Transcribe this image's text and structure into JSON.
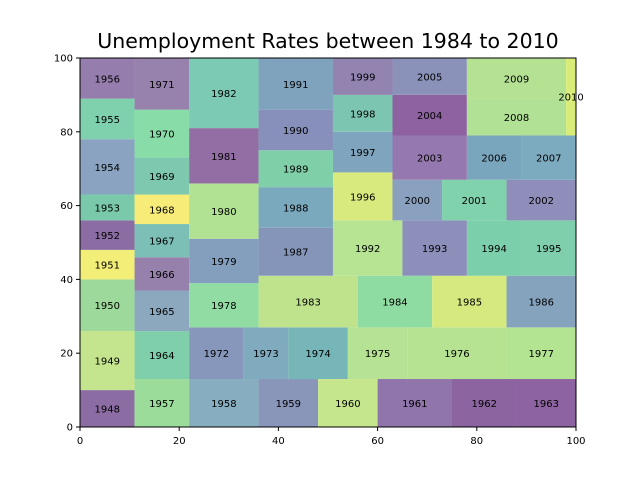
{
  "chart_data": {
    "type": "treemap",
    "title": "Unemployment Rates between 1984 to 2010",
    "xlim": [
      0,
      100
    ],
    "ylim": [
      0,
      100
    ],
    "xticks": [
      "0",
      "20",
      "40",
      "60",
      "80",
      "100"
    ],
    "yticks": [
      "0",
      "20",
      "40",
      "60",
      "80",
      "100"
    ],
    "grid": false,
    "cells": [
      {
        "label": "1948",
        "x0": 0,
        "y0": 0,
        "x1": 11,
        "y1": 10,
        "color": "#8b6da3"
      },
      {
        "label": "1949",
        "x0": 0,
        "y0": 10,
        "x1": 11,
        "y1": 26,
        "color": "#c4e58e"
      },
      {
        "label": "1950",
        "x0": 0,
        "y0": 26,
        "x1": 11,
        "y1": 40,
        "color": "#9dd99b"
      },
      {
        "label": "1951",
        "x0": 0,
        "y0": 40,
        "x1": 11,
        "y1": 48,
        "color": "#f2ee77"
      },
      {
        "label": "1952",
        "x0": 0,
        "y0": 48,
        "x1": 11,
        "y1": 56,
        "color": "#8b6da3"
      },
      {
        "label": "1953",
        "x0": 0,
        "y0": 56,
        "x1": 11,
        "y1": 63,
        "color": "#79c9aa"
      },
      {
        "label": "1954",
        "x0": 0,
        "y0": 63,
        "x1": 11,
        "y1": 78,
        "color": "#8aa3c0"
      },
      {
        "label": "1955",
        "x0": 0,
        "y0": 78,
        "x1": 11,
        "y1": 89,
        "color": "#7fd0ac"
      },
      {
        "label": "1956",
        "x0": 0,
        "y0": 89,
        "x1": 11,
        "y1": 100,
        "color": "#957dad"
      },
      {
        "label": "1957",
        "x0": 11,
        "y0": 0,
        "x1": 22,
        "y1": 13,
        "color": "#9cdc9b"
      },
      {
        "label": "1964",
        "x0": 11,
        "y0": 13,
        "x1": 22,
        "y1": 26,
        "color": "#7fcfaa"
      },
      {
        "label": "1965",
        "x0": 11,
        "y0": 26,
        "x1": 22,
        "y1": 37,
        "color": "#8ba8bf"
      },
      {
        "label": "1966",
        "x0": 11,
        "y0": 37,
        "x1": 22,
        "y1": 46,
        "color": "#9680ac"
      },
      {
        "label": "1967",
        "x0": 11,
        "y0": 46,
        "x1": 22,
        "y1": 55,
        "color": "#7bbfb6"
      },
      {
        "label": "1968",
        "x0": 11,
        "y0": 55,
        "x1": 22,
        "y1": 63,
        "color": "#f6ec77"
      },
      {
        "label": "1969",
        "x0": 11,
        "y0": 63,
        "x1": 22,
        "y1": 73,
        "color": "#7dc8ae"
      },
      {
        "label": "1970",
        "x0": 11,
        "y0": 73,
        "x1": 22,
        "y1": 86,
        "color": "#88dca8"
      },
      {
        "label": "1971",
        "x0": 11,
        "y0": 86,
        "x1": 22,
        "y1": 100,
        "color": "#9782ad"
      },
      {
        "label": "1958",
        "x0": 22,
        "y0": 0,
        "x1": 36,
        "y1": 13,
        "color": "#86aec0"
      },
      {
        "label": "1972",
        "x0": 22,
        "y0": 13,
        "x1": 33,
        "y1": 27,
        "color": "#8797bb"
      },
      {
        "label": "1978",
        "x0": 22,
        "y0": 27,
        "x1": 36,
        "y1": 39,
        "color": "#90dca3"
      },
      {
        "label": "1979",
        "x0": 22,
        "y0": 39,
        "x1": 36,
        "y1": 51,
        "color": "#849fbd"
      },
      {
        "label": "1980",
        "x0": 22,
        "y0": 51,
        "x1": 36,
        "y1": 66,
        "color": "#b1e192"
      },
      {
        "label": "1981",
        "x0": 22,
        "y0": 66,
        "x1": 36,
        "y1": 81,
        "color": "#936ea5"
      },
      {
        "label": "1982",
        "x0": 22,
        "y0": 81,
        "x1": 36,
        "y1": 100,
        "color": "#7cc9b4"
      },
      {
        "label": "1973",
        "x0": 33,
        "y0": 13,
        "x1": 42,
        "y1": 27,
        "color": "#80abbe"
      },
      {
        "label": "1959",
        "x0": 36,
        "y0": 0,
        "x1": 48,
        "y1": 13,
        "color": "#8996b9"
      },
      {
        "label": "1974",
        "x0": 42,
        "y0": 13,
        "x1": 54,
        "y1": 27,
        "color": "#76b6b8"
      },
      {
        "label": "1983",
        "x0": 36,
        "y0": 27,
        "x1": 56,
        "y1": 41,
        "color": "#bfe38c"
      },
      {
        "label": "1987",
        "x0": 36,
        "y0": 41,
        "x1": 51,
        "y1": 54,
        "color": "#8495b9"
      },
      {
        "label": "1988",
        "x0": 36,
        "y0": 54,
        "x1": 51,
        "y1": 65,
        "color": "#7aa8bd"
      },
      {
        "label": "1989",
        "x0": 36,
        "y0": 65,
        "x1": 51,
        "y1": 75,
        "color": "#7fd0a8"
      },
      {
        "label": "1990",
        "x0": 36,
        "y0": 75,
        "x1": 51,
        "y1": 86,
        "color": "#8790ba"
      },
      {
        "label": "1991",
        "x0": 36,
        "y0": 86,
        "x1": 51,
        "y1": 100,
        "color": "#7fa2bd"
      },
      {
        "label": "1960",
        "x0": 48,
        "y0": 0,
        "x1": 60,
        "y1": 13,
        "color": "#c6e68d"
      },
      {
        "label": "1975",
        "x0": 54,
        "y0": 13,
        "x1": 66,
        "y1": 27,
        "color": "#b6e293"
      },
      {
        "label": "1976",
        "x0": 66,
        "y0": 13,
        "x1": 86,
        "y1": 27,
        "color": "#b5e391"
      },
      {
        "label": "1977",
        "x0": 86,
        "y0": 13,
        "x1": 100,
        "y1": 27,
        "color": "#b3e492"
      },
      {
        "label": "1961",
        "x0": 60,
        "y0": 0,
        "x1": 75,
        "y1": 13,
        "color": "#8f75aa"
      },
      {
        "label": "1962",
        "x0": 75,
        "y0": 0,
        "x1": 88,
        "y1": 13,
        "color": "#8b64a0"
      },
      {
        "label": "1963",
        "x0": 88,
        "y0": 0,
        "x1": 100,
        "y1": 13,
        "color": "#8d63a1"
      },
      {
        "label": "1984",
        "x0": 56,
        "y0": 27,
        "x1": 71,
        "y1": 41,
        "color": "#8fdca2"
      },
      {
        "label": "1985",
        "x0": 71,
        "y0": 27,
        "x1": 86,
        "y1": 41,
        "color": "#d5e97f"
      },
      {
        "label": "1986",
        "x0": 86,
        "y0": 27,
        "x1": 100,
        "y1": 41,
        "color": "#86a3be"
      },
      {
        "label": "1992",
        "x0": 51,
        "y0": 41,
        "x1": 65,
        "y1": 56,
        "color": "#b6e493"
      },
      {
        "label": "1993",
        "x0": 65,
        "y0": 41,
        "x1": 78,
        "y1": 56,
        "color": "#8c8fb9"
      },
      {
        "label": "1994",
        "x0": 78,
        "y0": 41,
        "x1": 89,
        "y1": 56,
        "color": "#7ccfab"
      },
      {
        "label": "1995",
        "x0": 89,
        "y0": 41,
        "x1": 100,
        "y1": 56,
        "color": "#7fcfac"
      },
      {
        "label": "1996",
        "x0": 51,
        "y0": 56,
        "x1": 63,
        "y1": 69,
        "color": "#d8ea7d"
      },
      {
        "label": "2000",
        "x0": 63,
        "y0": 56,
        "x1": 73,
        "y1": 67,
        "color": "#89a0be"
      },
      {
        "label": "2001",
        "x0": 73,
        "y0": 56,
        "x1": 86,
        "y1": 67,
        "color": "#7fd2ac"
      },
      {
        "label": "2002",
        "x0": 86,
        "y0": 56,
        "x1": 100,
        "y1": 67,
        "color": "#8f8dba"
      },
      {
        "label": "1997",
        "x0": 51,
        "y0": 69,
        "x1": 63,
        "y1": 80,
        "color": "#7fa4bd"
      },
      {
        "label": "1998",
        "x0": 51,
        "y0": 80,
        "x1": 63,
        "y1": 90,
        "color": "#7cc5b1"
      },
      {
        "label": "1999",
        "x0": 51,
        "y0": 90,
        "x1": 63,
        "y1": 100,
        "color": "#9283b1"
      },
      {
        "label": "2003",
        "x0": 63,
        "y0": 67,
        "x1": 78,
        "y1": 79,
        "color": "#9678b0"
      },
      {
        "label": "2004",
        "x0": 63,
        "y0": 79,
        "x1": 78,
        "y1": 90,
        "color": "#8e62a1"
      },
      {
        "label": "2005",
        "x0": 63,
        "y0": 90,
        "x1": 78,
        "y1": 100,
        "color": "#8b92ba"
      },
      {
        "label": "2006",
        "x0": 78,
        "y0": 67,
        "x1": 89,
        "y1": 79,
        "color": "#7aa6bd"
      },
      {
        "label": "2007",
        "x0": 89,
        "y0": 67,
        "x1": 100,
        "y1": 79,
        "color": "#7cabbf"
      },
      {
        "label": "2008",
        "x0": 78,
        "y0": 79,
        "x1": 98,
        "y1": 89,
        "color": "#b1e194"
      },
      {
        "label": "2009",
        "x0": 78,
        "y0": 89,
        "x1": 98,
        "y1": 100,
        "color": "#b4e292"
      },
      {
        "label": "2010",
        "x0": 98,
        "y0": 79,
        "x1": 100,
        "y1": 100,
        "color": "#d9ec78"
      }
    ]
  }
}
